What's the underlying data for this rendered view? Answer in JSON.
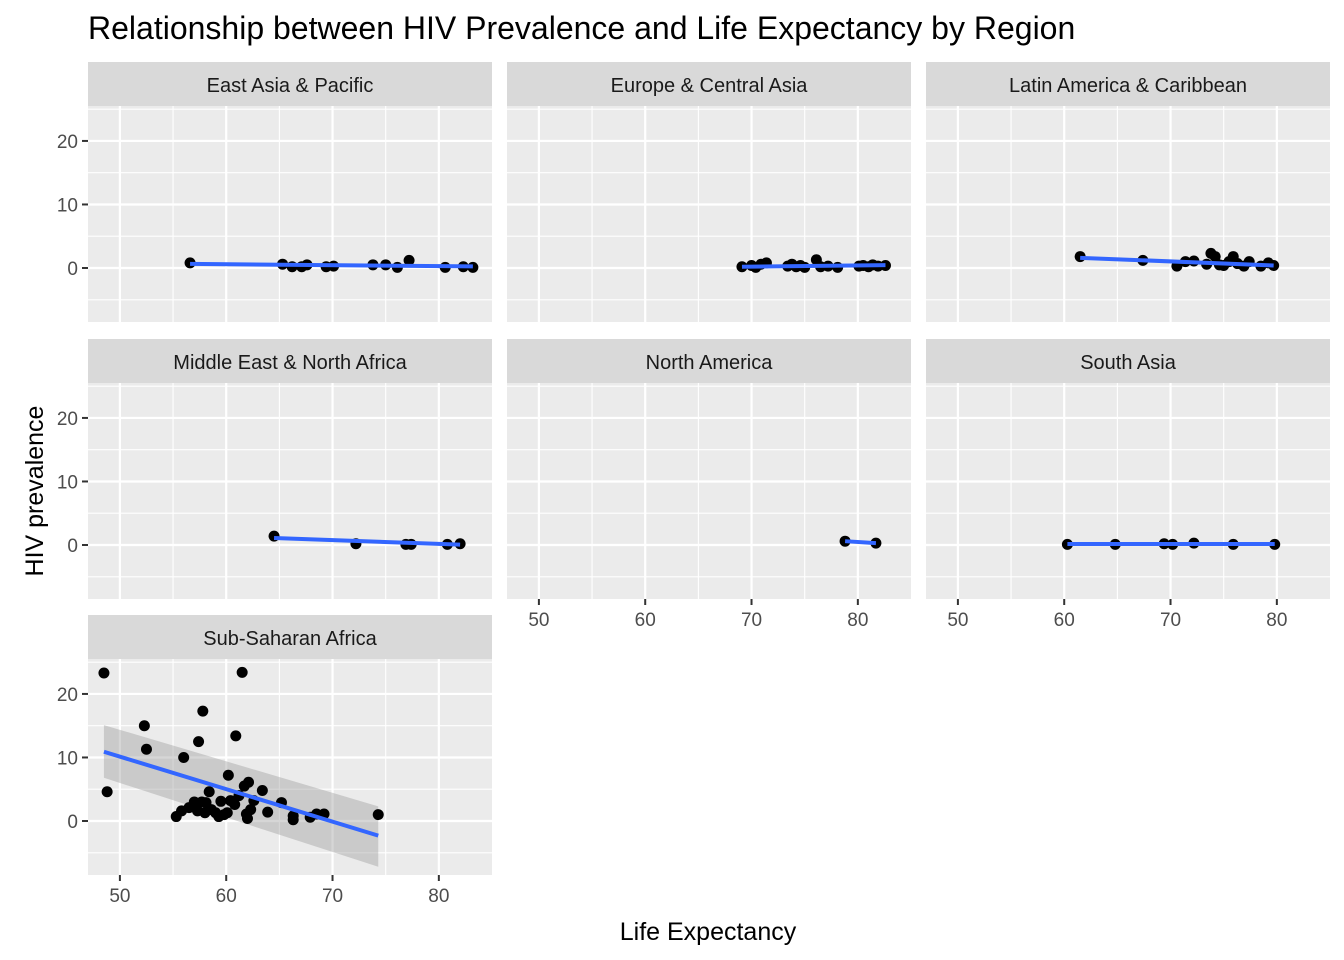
{
  "chart_data": {
    "type": "scatter",
    "title": "Relationship between HIV Prevalence and Life Expectancy by Region",
    "xlabel": "Life Expectancy",
    "ylabel": "HIV prevalence",
    "xlim": [
      47,
      85
    ],
    "ylim": [
      -8.5,
      25.5
    ],
    "x_ticks": [
      50,
      60,
      70,
      80
    ],
    "y_ticks": [
      0,
      10,
      20
    ],
    "grid": true,
    "facets": [
      {
        "name": "East Asia & Pacific",
        "points": [
          [
            56.6,
            0.8
          ],
          [
            65.3,
            0.6
          ],
          [
            66.2,
            0.2
          ],
          [
            67.1,
            0.2
          ],
          [
            67.6,
            0.5
          ],
          [
            69.4,
            0.2
          ],
          [
            70.1,
            0.3
          ],
          [
            73.8,
            0.5
          ],
          [
            75.0,
            0.5
          ],
          [
            76.1,
            0.1
          ],
          [
            77.2,
            1.2
          ],
          [
            80.6,
            0.1
          ],
          [
            82.3,
            0.2
          ],
          [
            83.2,
            0.1
          ]
        ],
        "fit": {
          "x": [
            56.6,
            83.2
          ],
          "y": [
            0.65,
            0.25
          ],
          "se": false
        }
      },
      {
        "name": "Europe & Central Asia",
        "points": [
          [
            69.1,
            0.2
          ],
          [
            70.0,
            0.4
          ],
          [
            70.4,
            0.1
          ],
          [
            70.9,
            0.6
          ],
          [
            71.4,
            0.8
          ],
          [
            73.4,
            0.3
          ],
          [
            73.8,
            0.6
          ],
          [
            74.2,
            0.2
          ],
          [
            74.6,
            0.4
          ],
          [
            75.0,
            0.1
          ],
          [
            76.1,
            1.3
          ],
          [
            76.5,
            0.2
          ],
          [
            77.2,
            0.3
          ],
          [
            78.1,
            0.1
          ],
          [
            80.1,
            0.3
          ],
          [
            80.5,
            0.4
          ],
          [
            81.0,
            0.2
          ],
          [
            81.4,
            0.5
          ],
          [
            81.9,
            0.3
          ],
          [
            82.6,
            0.4
          ]
        ],
        "fit": {
          "x": [
            69.1,
            82.6
          ],
          "y": [
            0.2,
            0.45
          ],
          "se": false
        }
      },
      {
        "name": "Latin America & Caribbean",
        "points": [
          [
            61.5,
            1.8
          ],
          [
            67.4,
            1.2
          ],
          [
            70.6,
            0.3
          ],
          [
            71.4,
            1.0
          ],
          [
            72.2,
            1.1
          ],
          [
            73.4,
            0.6
          ],
          [
            73.8,
            2.3
          ],
          [
            74.2,
            1.8
          ],
          [
            74.6,
            0.5
          ],
          [
            75.0,
            0.4
          ],
          [
            75.5,
            1.0
          ],
          [
            75.9,
            1.8
          ],
          [
            76.3,
            0.7
          ],
          [
            76.9,
            0.3
          ],
          [
            77.4,
            1.0
          ],
          [
            78.5,
            0.3
          ],
          [
            79.2,
            0.8
          ],
          [
            79.7,
            0.4
          ]
        ],
        "fit": {
          "x": [
            61.5,
            79.7
          ],
          "y": [
            1.6,
            0.4
          ],
          "se": false
        }
      },
      {
        "name": "Middle East & North Africa",
        "points": [
          [
            64.5,
            1.4
          ],
          [
            72.2,
            0.2
          ],
          [
            76.9,
            0.1
          ],
          [
            77.4,
            0.1
          ],
          [
            80.8,
            0.1
          ],
          [
            82.0,
            0.2
          ]
        ],
        "fit": {
          "x": [
            64.5,
            82.0
          ],
          "y": [
            1.1,
            0.05
          ],
          "se": false
        }
      },
      {
        "name": "North America",
        "points": [
          [
            78.8,
            0.6
          ],
          [
            81.7,
            0.3
          ]
        ],
        "fit": {
          "x": [
            78.8,
            81.7
          ],
          "y": [
            0.6,
            0.3
          ],
          "se": false
        }
      },
      {
        "name": "South Asia",
        "points": [
          [
            60.3,
            0.1
          ],
          [
            64.8,
            0.1
          ],
          [
            69.4,
            0.2
          ],
          [
            70.2,
            0.1
          ],
          [
            72.2,
            0.3
          ],
          [
            75.9,
            0.1
          ],
          [
            79.8,
            0.1
          ]
        ],
        "fit": {
          "x": [
            60.3,
            79.8
          ],
          "y": [
            0.15,
            0.15
          ],
          "se": false
        }
      },
      {
        "name": "Sub-Saharan Africa",
        "points": [
          [
            48.5,
            23.3
          ],
          [
            48.8,
            4.6
          ],
          [
            52.3,
            15.0
          ],
          [
            52.5,
            11.3
          ],
          [
            55.3,
            0.7
          ],
          [
            55.8,
            1.6
          ],
          [
            56.0,
            10.0
          ],
          [
            56.5,
            2.1
          ],
          [
            57.0,
            3.0
          ],
          [
            57.3,
            1.6
          ],
          [
            57.4,
            12.5
          ],
          [
            57.7,
            3.0
          ],
          [
            57.8,
            17.3
          ],
          [
            58.0,
            1.3
          ],
          [
            58.1,
            2.9
          ],
          [
            58.4,
            4.6
          ],
          [
            58.6,
            1.8
          ],
          [
            59.0,
            1.3
          ],
          [
            59.3,
            0.7
          ],
          [
            59.5,
            3.1
          ],
          [
            59.8,
            1.0
          ],
          [
            60.1,
            1.3
          ],
          [
            60.2,
            7.2
          ],
          [
            60.4,
            3.2
          ],
          [
            60.8,
            2.6
          ],
          [
            60.9,
            13.4
          ],
          [
            61.2,
            4.0
          ],
          [
            61.5,
            23.4
          ],
          [
            61.7,
            5.5
          ],
          [
            61.9,
            1.1
          ],
          [
            62.0,
            0.4
          ],
          [
            62.1,
            6.1
          ],
          [
            62.3,
            1.8
          ],
          [
            62.6,
            3.2
          ],
          [
            63.4,
            4.8
          ],
          [
            63.9,
            1.4
          ],
          [
            65.2,
            2.9
          ],
          [
            66.3,
            0.8
          ],
          [
            66.3,
            0.2
          ],
          [
            67.9,
            0.6
          ],
          [
            68.5,
            1.1
          ],
          [
            69.2,
            1.1
          ],
          [
            74.3,
            1.0
          ]
        ],
        "fit": {
          "x": [
            48.5,
            74.3
          ],
          "y": [
            10.9,
            -2.3
          ],
          "se": true,
          "se_upper": [
            15.1,
            2.3
          ],
          "se_lower": [
            6.8,
            -7.2
          ]
        }
      }
    ],
    "colors": {
      "panel_bg": "#ebebeb",
      "strip_bg": "#d9d9d9",
      "grid": "#ffffff",
      "point": "#000000",
      "fit_line": "#3366ff",
      "se_band": "#999999"
    }
  }
}
